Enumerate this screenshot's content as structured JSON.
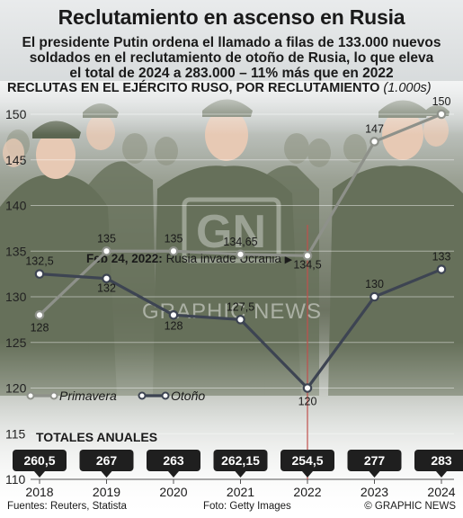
{
  "title": "Reclutamiento en ascenso en Rusia",
  "subtitle_lines": [
    "El presidente Putin ordena el llamado a filas de 133.000 nuevos",
    "soldados en el reclutamiento de otoño de Rusia, lo que eleva",
    "el total de 2024 a 283.000 – 11% más que en 2022"
  ],
  "footer": {
    "sources": "Fuentes: Reuters, Statista",
    "photo": "Foto: Getty Images",
    "copyright": "© GRAPHIC NEWS"
  },
  "colors": {
    "primavera": "#8e918a",
    "otono": "#3d4452",
    "marker": "#c0504d",
    "badge": "#1f1f1f"
  },
  "chart_data": {
    "type": "line",
    "heading": "RECLUTAS EN EL EJÉRCITO RUSO, POR RECLUTAMIENTO",
    "unit": "(1.000s)",
    "categories": [
      "2018",
      "2019",
      "2020",
      "2021",
      "2022",
      "2023",
      "2024"
    ],
    "ylim": [
      110,
      152
    ],
    "yticks": [
      110,
      115,
      120,
      125,
      130,
      135,
      140,
      145,
      150
    ],
    "grid": true,
    "series": [
      {
        "name": "Primavera",
        "values": [
          128,
          135,
          135,
          134.65,
          134.5,
          147,
          150
        ],
        "labels": [
          "128",
          "135",
          "135",
          "134,65",
          "134,5",
          "147",
          "150"
        ]
      },
      {
        "name": "Otoño",
        "values": [
          132.5,
          132,
          128,
          127.5,
          120,
          130,
          133
        ],
        "labels": [
          "132,5",
          "132",
          "128",
          "127,5",
          "120",
          "130",
          "133"
        ]
      }
    ],
    "annotation": {
      "date": "Feb 24, 2022:",
      "text": "Rusia invade Ucrania",
      "arrow": "▶"
    },
    "totals_title": "TOTALES ANUALES",
    "totals": [
      "260,5",
      "267",
      "263",
      "262,15",
      "254,5",
      "277",
      "283"
    ],
    "legend_position": "bottom-left"
  }
}
